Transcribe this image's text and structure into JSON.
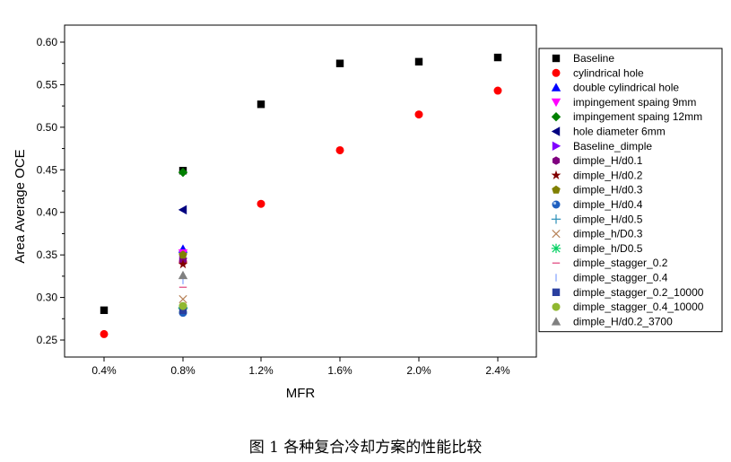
{
  "caption": "图 1 各种复合冷却方案的性能比较",
  "chart_data": {
    "type": "scatter",
    "xlabel": "MFR",
    "ylabel": "Area Average OCE",
    "categories": [
      "0.4%",
      "0.8%",
      "1.2%",
      "1.6%",
      "2.0%",
      "2.4%"
    ],
    "yticks": [
      "0.25",
      "0.30",
      "0.35",
      "0.40",
      "0.45",
      "0.50",
      "0.55",
      "0.60"
    ],
    "ylim": [
      0.23,
      0.62
    ],
    "legend_position": "right",
    "series": [
      {
        "name": "Baseline",
        "marker": "square",
        "color": "#000000",
        "points": [
          [
            "0.4%",
            0.285
          ],
          [
            "0.8%",
            0.449
          ],
          [
            "1.2%",
            0.527
          ],
          [
            "1.6%",
            0.575
          ],
          [
            "2.0%",
            0.577
          ],
          [
            "2.4%",
            0.582
          ]
        ]
      },
      {
        "name": "cylindrical hole",
        "marker": "circle",
        "color": "#ff0000",
        "points": [
          [
            "0.4%",
            0.257
          ],
          [
            "0.8%",
            0.342
          ],
          [
            "1.2%",
            0.41
          ],
          [
            "1.6%",
            0.473
          ],
          [
            "2.0%",
            0.515
          ],
          [
            "2.4%",
            0.543
          ]
        ]
      },
      {
        "name": "double cylindrical hole",
        "marker": "triangle-up",
        "color": "#0000ff",
        "points": [
          [
            "0.8%",
            0.357
          ]
        ]
      },
      {
        "name": "impingement spaing 9mm",
        "marker": "triangle-down",
        "color": "#ff00ff",
        "points": [
          [
            "0.8%",
            0.352
          ]
        ]
      },
      {
        "name": "impingement spaing 12mm",
        "marker": "diamond",
        "color": "#008000",
        "points": [
          [
            "0.8%",
            0.447
          ]
        ]
      },
      {
        "name": "hole diameter 6mm",
        "marker": "triangle-left",
        "color": "#000080",
        "points": [
          [
            "0.8%",
            0.403
          ]
        ]
      },
      {
        "name": "Baseline_dimple",
        "marker": "triangle-right",
        "color": "#8000ff",
        "points": [
          [
            "0.8%",
            0.346
          ]
        ]
      },
      {
        "name": "dimple_H/d0.1",
        "marker": "hexagon",
        "color": "#800080",
        "points": [
          [
            "0.8%",
            0.344
          ]
        ]
      },
      {
        "name": "dimple_H/d0.2",
        "marker": "star",
        "color": "#800000",
        "points": [
          [
            "0.8%",
            0.339
          ]
        ]
      },
      {
        "name": "dimple_H/d0.3",
        "marker": "pentagon",
        "color": "#808000",
        "points": [
          [
            "0.8%",
            0.35
          ]
        ]
      },
      {
        "name": "dimple_H/d0.4",
        "marker": "sphere",
        "color": "#1f5fbf",
        "points": [
          [
            "0.8%",
            0.282
          ]
        ]
      },
      {
        "name": "dimple_H/d0.5",
        "marker": "plus",
        "color": "#2a8fb8",
        "points": [
          [
            "0.8%",
            0.288
          ]
        ]
      },
      {
        "name": "dimple_h/D0.3",
        "marker": "x",
        "color": "#b8845a",
        "points": [
          [
            "0.8%",
            0.298
          ]
        ]
      },
      {
        "name": "dimple_h/D0.5",
        "marker": "asterisk",
        "color": "#00d060",
        "points": [
          [
            "0.8%",
            0.287
          ]
        ]
      },
      {
        "name": "dimple_stagger_0.2",
        "marker": "hline",
        "color": "#e0407a",
        "points": [
          [
            "0.8%",
            0.312
          ]
        ]
      },
      {
        "name": "dimple_stagger_0.4",
        "marker": "vline",
        "color": "#80a0ff",
        "points": [
          [
            "0.8%",
            0.32
          ]
        ]
      },
      {
        "name": "dimple_stagger_0.2_10000",
        "marker": "square",
        "color": "#2a3f9f",
        "points": [
          [
            "0.8%",
            0.285
          ]
        ]
      },
      {
        "name": "dimple_stagger_0.4_10000",
        "marker": "circle",
        "color": "#90b830",
        "points": [
          [
            "0.8%",
            0.29
          ]
        ]
      },
      {
        "name": "dimple_H/d0.2_3700",
        "marker": "triangle-up",
        "color": "#808080",
        "points": [
          [
            "0.8%",
            0.326
          ]
        ]
      }
    ]
  }
}
